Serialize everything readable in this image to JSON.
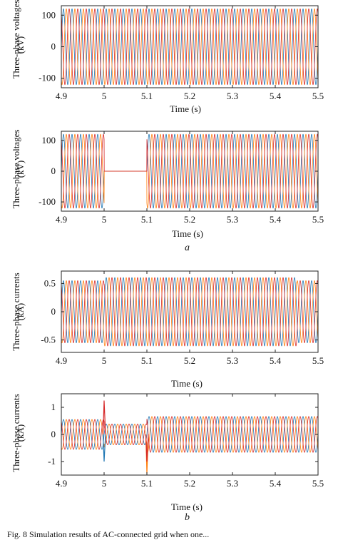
{
  "chart_data": [
    {
      "type": "line",
      "panel": "a-top",
      "ylabel": "Three-phase voltages",
      "yunit": "(kV)",
      "xlabel": "Time (s)",
      "xlim": [
        4.9,
        5.5
      ],
      "ylim": [
        -130,
        130
      ],
      "xticks": [
        "4.9",
        "5",
        "5.1",
        "5.2",
        "5.3",
        "5.4",
        "5.5"
      ],
      "yticks": [
        "100",
        "0",
        "-100"
      ],
      "ytick_values": [
        100,
        0,
        -100
      ],
      "series": [
        {
          "color": "#1f77b4",
          "amplitude": 120,
          "phase_deg": 0
        },
        {
          "color": "#ff7f0e",
          "amplitude": 120,
          "phase_deg": -120
        },
        {
          "color": "#d62728",
          "amplitude": 120,
          "phase_deg": 120
        }
      ],
      "frequency_hz": 50,
      "segments": [
        {
          "t0": 4.9,
          "t1": 5.5,
          "amplitude_scale": 1.0
        }
      ]
    },
    {
      "type": "line",
      "panel": "a-bottom",
      "ylabel": "Three-phase voltages",
      "yunit": "(kV)",
      "xlabel": "Time (s)",
      "xlim": [
        4.9,
        5.5
      ],
      "ylim": [
        -130,
        130
      ],
      "xticks": [
        "4.9",
        "5",
        "5.1",
        "5.2",
        "5.3",
        "5.4",
        "5.5"
      ],
      "yticks": [
        "100",
        "0",
        "-100"
      ],
      "ytick_values": [
        100,
        0,
        -100
      ],
      "series": [
        {
          "color": "#1f77b4",
          "amplitude": 120,
          "phase_deg": 0
        },
        {
          "color": "#ff7f0e",
          "amplitude": 120,
          "phase_deg": -120
        },
        {
          "color": "#d62728",
          "amplitude": 120,
          "phase_deg": 120
        }
      ],
      "frequency_hz": 50,
      "segments": [
        {
          "t0": 4.9,
          "t1": 5.0,
          "amplitude_scale": 1.0
        },
        {
          "t0": 5.0,
          "t1": 5.1,
          "amplitude_scale": 0.0
        },
        {
          "t0": 5.1,
          "t1": 5.5,
          "amplitude_scale": 1.0
        }
      ]
    },
    {
      "type": "line",
      "panel": "b-top",
      "ylabel": "Three-phase currents",
      "yunit": "(kA)",
      "xlabel": "Time (s)",
      "xlim": [
        4.9,
        5.5
      ],
      "ylim": [
        -0.72,
        0.72
      ],
      "xticks": [
        "4.9",
        "5",
        "5.1",
        "5.2",
        "5.3",
        "5.4",
        "5.5"
      ],
      "yticks": [
        "0.5",
        "0",
        "-0.5"
      ],
      "ytick_values": [
        0.5,
        0,
        -0.5
      ],
      "series": [
        {
          "color": "#1f77b4",
          "amplitude": 0.55,
          "phase_deg": 0
        },
        {
          "color": "#ff7f0e",
          "amplitude": 0.55,
          "phase_deg": -120
        },
        {
          "color": "#d62728",
          "amplitude": 0.55,
          "phase_deg": 120
        }
      ],
      "frequency_hz": 50,
      "segments": [
        {
          "t0": 4.9,
          "t1": 5.0,
          "amplitude_scale": 1.0
        },
        {
          "t0": 5.0,
          "t1": 5.45,
          "amplitude_scale": 1.1
        },
        {
          "t0": 5.45,
          "t1": 5.5,
          "amplitude_scale": 1.0
        }
      ]
    },
    {
      "type": "line",
      "panel": "b-bottom",
      "ylabel": "Three-phase currents",
      "yunit": "(kA)",
      "xlabel": "Time (s)",
      "xlim": [
        4.9,
        5.5
      ],
      "ylim": [
        -1.5,
        1.5
      ],
      "xticks": [
        "4.9",
        "5",
        "5.1",
        "5.2",
        "5.3",
        "5.4",
        "5.5"
      ],
      "yticks": [
        "1",
        "0",
        "-1"
      ],
      "ytick_values": [
        1,
        0,
        -1
      ],
      "series": [
        {
          "color": "#1f77b4",
          "amplitude": 0.55,
          "phase_deg": 0
        },
        {
          "color": "#ff7f0e",
          "amplitude": 0.55,
          "phase_deg": -120
        },
        {
          "color": "#d62728",
          "amplitude": 0.55,
          "phase_deg": 120
        }
      ],
      "frequency_hz": 50,
      "segments": [
        {
          "t0": 4.9,
          "t1": 5.0,
          "amplitude_scale": 1.0
        },
        {
          "t0": 5.0,
          "t1": 5.1,
          "amplitude_scale": 0.7
        },
        {
          "t0": 5.1,
          "t1": 5.5,
          "amplitude_scale": 1.2
        }
      ],
      "spikes": [
        {
          "t": 5.0,
          "value": 1.25,
          "color": "#d62728"
        },
        {
          "t": 5.0,
          "value": -1.0,
          "color": "#1f77b4"
        },
        {
          "t": 5.1,
          "value": -1.45,
          "color": "#ff7f0e"
        },
        {
          "t": 5.1,
          "value": -1.0,
          "color": "#d62728"
        }
      ]
    }
  ],
  "subfigure_labels": [
    "a",
    "b"
  ],
  "caption": "Fig. 8  Simulation results of AC-connected grid when one..."
}
